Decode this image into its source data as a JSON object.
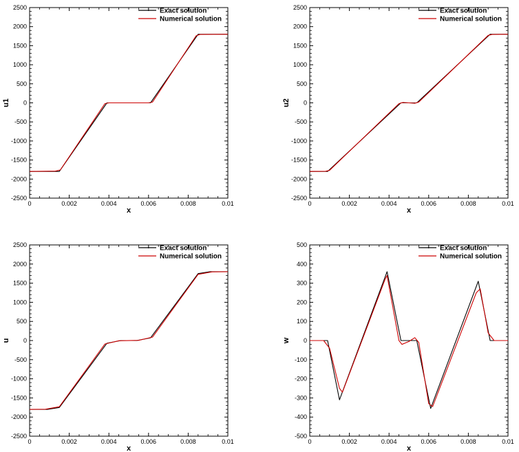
{
  "chart_data": [
    {
      "type": "line",
      "xlabel": "x",
      "ylabel": "u1",
      "xlim": [
        0,
        0.01
      ],
      "ylim": [
        -2500,
        2500
      ],
      "xticks": [
        "0",
        "0.002",
        "0.004",
        "0.006",
        "0.008",
        "0.01"
      ],
      "yticks": [
        "-2500",
        "-2000",
        "-1500",
        "-1000",
        "-500",
        "0",
        "500",
        "1000",
        "1500",
        "2000",
        "2500"
      ],
      "legend_position": "top-right",
      "grid": false,
      "series": [
        {
          "name": "Exact solution",
          "color": "#000000",
          "x": [
            0,
            0.0015,
            0.0039,
            0.0061,
            0.0085,
            0.01
          ],
          "y": [
            -1800,
            -1800,
            0,
            0,
            1800,
            1800
          ]
        },
        {
          "name": "Numerical solution",
          "color": "#cc0000",
          "x": [
            0,
            0.0013,
            0.00155,
            0.0038,
            0.004,
            0.006,
            0.0062,
            0.0084,
            0.0086,
            0.01
          ],
          "y": [
            -1800,
            -1790,
            -1760,
            -20,
            0,
            0,
            20,
            1760,
            1795,
            1800
          ]
        }
      ]
    },
    {
      "type": "line",
      "xlabel": "x",
      "ylabel": "u2",
      "xlim": [
        0,
        0.01
      ],
      "ylim": [
        -2500,
        2500
      ],
      "xticks": [
        "0",
        "0.002",
        "0.004",
        "0.006",
        "0.008",
        "0.01"
      ],
      "yticks": [
        "-2500",
        "-2000",
        "-1500",
        "-1000",
        "-500",
        "0",
        "500",
        "1000",
        "1500",
        "2000",
        "2500"
      ],
      "legend_position": "top-right",
      "grid": false,
      "series": [
        {
          "name": "Exact solution",
          "color": "#000000",
          "x": [
            0,
            0.0009,
            0.0046,
            0.0054,
            0.0091,
            0.01
          ],
          "y": [
            -1800,
            -1800,
            0,
            0,
            1800,
            1800
          ]
        },
        {
          "name": "Numerical solution",
          "color": "#cc0000",
          "x": [
            0,
            0.0008,
            0.001,
            0.0045,
            0.0047,
            0.005,
            0.0053,
            0.0055,
            0.009,
            0.0092,
            0.01
          ],
          "y": [
            -1800,
            -1795,
            -1770,
            -20,
            10,
            0,
            -10,
            20,
            1770,
            1795,
            1800
          ]
        }
      ]
    },
    {
      "type": "line",
      "xlabel": "x",
      "ylabel": "u",
      "xlim": [
        0,
        0.01
      ],
      "ylim": [
        -2500,
        2500
      ],
      "xticks": [
        "0",
        "0.002",
        "0.004",
        "0.006",
        "0.008",
        "0.01"
      ],
      "yticks": [
        "-2500",
        "-2000",
        "-1500",
        "-1000",
        "-500",
        "0",
        "500",
        "1000",
        "1500",
        "2000",
        "2500"
      ],
      "legend_position": "top-right",
      "grid": false,
      "series": [
        {
          "name": "Exact solution",
          "color": "#000000",
          "x": [
            0,
            0.0009,
            0.0015,
            0.0039,
            0.0046,
            0.0054,
            0.0061,
            0.0085,
            0.0091,
            0.01
          ],
          "y": [
            -1800,
            -1800,
            -1750,
            -70,
            0,
            0,
            70,
            1750,
            1800,
            1800
          ]
        },
        {
          "name": "Numerical solution",
          "color": "#cc0000",
          "x": [
            0,
            0.0008,
            0.0015,
            0.0038,
            0.0045,
            0.0055,
            0.0062,
            0.0085,
            0.0092,
            0.01
          ],
          "y": [
            -1800,
            -1795,
            -1730,
            -90,
            -5,
            5,
            90,
            1730,
            1795,
            1800
          ]
        }
      ]
    },
    {
      "type": "line",
      "xlabel": "x",
      "ylabel": "w",
      "xlim": [
        0,
        0.01
      ],
      "ylim": [
        -500,
        500
      ],
      "xticks": [
        "0",
        "0.002",
        "0.004",
        "0.006",
        "0.008",
        "0.01"
      ],
      "yticks": [
        "-500",
        "-400",
        "-300",
        "-200",
        "-100",
        "0",
        "100",
        "200",
        "300",
        "400",
        "500"
      ],
      "legend_position": "top-right",
      "grid": false,
      "series": [
        {
          "name": "Exact solution",
          "color": "#000000",
          "x": [
            0,
            0.0009,
            0.0015,
            0.0039,
            0.0046,
            0.0054,
            0.0061,
            0.0085,
            0.0091,
            0.01
          ],
          "y": [
            0,
            0,
            -310,
            360,
            0,
            0,
            -355,
            310,
            0,
            0
          ]
        },
        {
          "name": "Numerical solution",
          "color": "#cc0000",
          "x": [
            0,
            0.0007,
            0.001,
            0.0015,
            0.00165,
            0.0038,
            0.0039,
            0.0045,
            0.00465,
            0.005,
            0.0053,
            0.0055,
            0.006,
            0.0062,
            0.0084,
            0.0086,
            0.009,
            0.0093,
            0.01
          ],
          "y": [
            0,
            0,
            -40,
            -250,
            -270,
            320,
            340,
            0,
            -20,
            -5,
            15,
            -10,
            -330,
            -345,
            250,
            270,
            40,
            0,
            0
          ]
        }
      ]
    }
  ]
}
